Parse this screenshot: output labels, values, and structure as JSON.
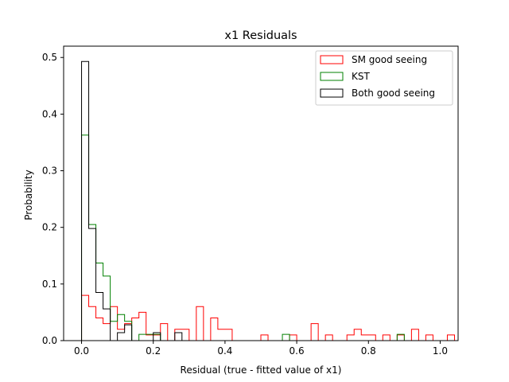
{
  "chart_data": {
    "type": "histogram",
    "title": "x1 Residuals",
    "xlabel": "Residual (true - fitted value of x1)",
    "ylabel": "Probability",
    "xlim": [
      -0.05,
      1.05
    ],
    "ylim": [
      0,
      0.52
    ],
    "xticks": [
      0.0,
      0.2,
      0.4,
      0.6,
      0.8,
      1.0
    ],
    "xtick_labels": [
      "0.0",
      "0.2",
      "0.4",
      "0.6",
      "0.8",
      "1.0"
    ],
    "yticks": [
      0.0,
      0.1,
      0.2,
      0.3,
      0.4,
      0.5
    ],
    "ytick_labels": [
      "0.0",
      "0.1",
      "0.2",
      "0.3",
      "0.4",
      "0.5"
    ],
    "grid": false,
    "legend_position": "top-right",
    "series": [
      {
        "name": "SM good seeing",
        "color": "#ff0000",
        "bin_start": 0.0,
        "bin_width": 0.02,
        "values": [
          0.08,
          0.06,
          0.04,
          0.03,
          0.06,
          0.02,
          0.03,
          0.04,
          0.05,
          0.01,
          0.01,
          0.03,
          0.0,
          0.02,
          0.02,
          0.0,
          0.06,
          0.0,
          0.04,
          0.02,
          0.02,
          0.0,
          0.0,
          0.0,
          0.0,
          0.01,
          0.0,
          0.0,
          0.0,
          0.01,
          0.0,
          0.0,
          0.03,
          0.0,
          0.01,
          0.0,
          0.0,
          0.01,
          0.02,
          0.01,
          0.01,
          0.0,
          0.01,
          0.0,
          0.01,
          0.0,
          0.02,
          0.0,
          0.01,
          0.0,
          0.0,
          0.01
        ]
      },
      {
        "name": "KST",
        "color": "#008000",
        "bin_start": 0.0,
        "bin_width": 0.02,
        "values": [
          0.363,
          0.205,
          0.137,
          0.114,
          0.034,
          0.046,
          0.034,
          0.0,
          0.011,
          0.011,
          0.011,
          0.0,
          0.0,
          0.0,
          0.0,
          0.0,
          0.0,
          0.0,
          0.0,
          0.0,
          0.0,
          0.0,
          0.0,
          0.0,
          0.0,
          0.0,
          0.0,
          0.0,
          0.011,
          0.0,
          0.0,
          0.0,
          0.0,
          0.0,
          0.0,
          0.0,
          0.0,
          0.0,
          0.0,
          0.0,
          0.0,
          0.0,
          0.0,
          0.0,
          0.011
        ]
      },
      {
        "name": "Both good seeing",
        "color": "#000000",
        "bin_start": 0.0,
        "bin_width": 0.02,
        "values": [
          0.493,
          0.198,
          0.085,
          0.056,
          0.0,
          0.014,
          0.028,
          0.0,
          0.0,
          0.0,
          0.014,
          0.0,
          0.0,
          0.014
        ]
      }
    ]
  }
}
